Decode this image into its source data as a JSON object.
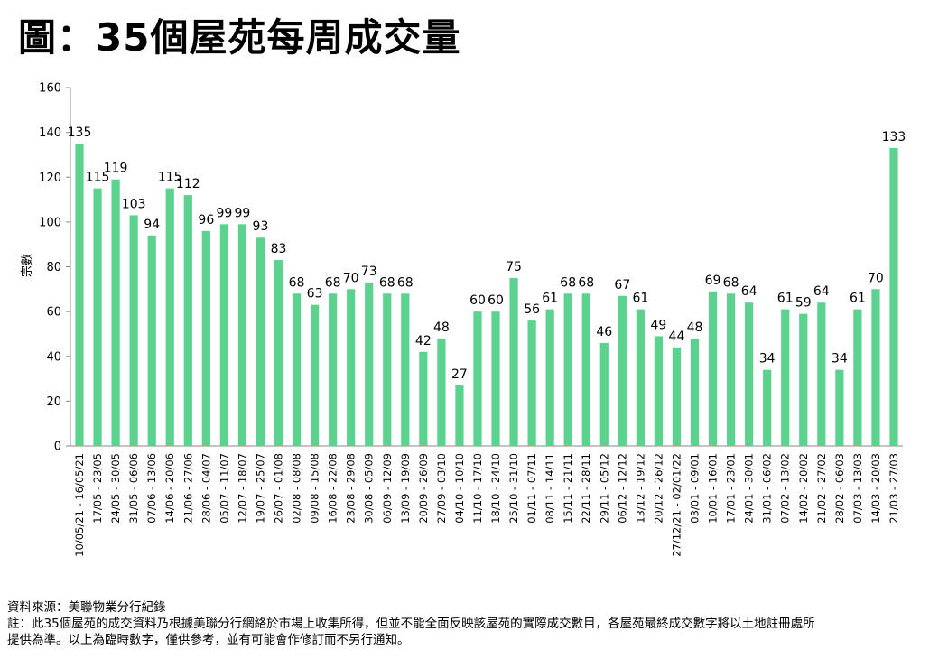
{
  "title": "圖：35個屋苑每周成交量",
  "source": "資料來源：美聯物業分行紀錄",
  "note_line1": "註：此35個屋苑的成交資料乃根據美聯分行網絡於市場上收集所得，但並不能全面反映該屋苑的實際成交數目，各屋苑最終成交數字將以土地註冊處所",
  "note_line2": "提供為準。以上為臨時數字，僅供參考，並有可能會作修訂而不另行通知。",
  "chart_data": {
    "type": "bar",
    "ylabel": "宗數",
    "ylim": [
      0,
      160
    ],
    "yticks": [
      0,
      20,
      40,
      60,
      80,
      100,
      120,
      140,
      160
    ],
    "bar_color": "#5bd38f",
    "categories": [
      "10/05/21 - 16/05/21",
      "17/05 - 23/05",
      "24/05 - 30/05",
      "31/05 - 06/06",
      "07/06 - 13/06",
      "14/06 - 20/06",
      "21/06 - 27/06",
      "28/06 - 04/07",
      "05/07 - 11/07",
      "12/07 - 18/07",
      "19/07 - 25/07",
      "26/07 - 01/08",
      "02/08 - 08/08",
      "09/08 - 15/08",
      "16/08 - 22/08",
      "23/08 - 29/08",
      "30/08 - 05/09",
      "06/09 - 12/09",
      "13/09 - 19/09",
      "20/09 - 26/09",
      "27/09 - 03/10",
      "04/10 - 10/10",
      "11/10 - 17/10",
      "18/10 - 24/10",
      "25/10 - 31/10",
      "01/11 - 07/11",
      "08/11 - 14/11",
      "15/11 - 21/11",
      "22/11 - 28/11",
      "29/11 - 05/12",
      "06/12 - 12/12",
      "13/12 - 19/12",
      "20/12 - 26/12",
      "27/12/21 - 02/01/22",
      "03/01 - 09/01",
      "10/01 - 16/01",
      "17/01 - 23/01",
      "24/01 - 30/01",
      "31/01 - 06/02",
      "07/02 - 13/02",
      "14/02 - 20/02",
      "21/02 - 27/02",
      "28/02 - 06/03",
      "07/03 - 13/03",
      "14/03 - 20/03",
      "21/03 - 27/03"
    ],
    "values": [
      135,
      115,
      119,
      103,
      94,
      115,
      112,
      96,
      99,
      99,
      93,
      83,
      68,
      63,
      68,
      70,
      73,
      68,
      68,
      42,
      48,
      27,
      60,
      60,
      75,
      56,
      61,
      68,
      68,
      46,
      67,
      61,
      49,
      44,
      48,
      69,
      68,
      64,
      34,
      61,
      59,
      64,
      34,
      61,
      70,
      133
    ]
  }
}
